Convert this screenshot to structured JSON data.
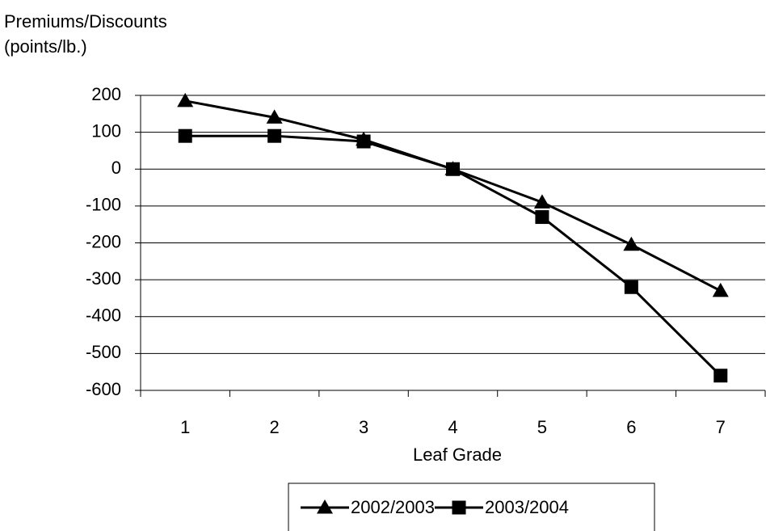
{
  "chart_data": {
    "type": "line",
    "ylabel": [
      "Premiums/Discounts",
      "(points/lb.)"
    ],
    "xlabel": "Leaf Grade",
    "categories": [
      "1",
      "2",
      "3",
      "4",
      "5",
      "6",
      "7"
    ],
    "series": [
      {
        "name": "2002/2003",
        "color": "#000000",
        "marker": "triangle",
        "values": [
          185,
          140,
          80,
          0,
          -90,
          -205,
          -330
        ]
      },
      {
        "name": "2003/2004",
        "color": "#000000",
        "marker": "square",
        "values": [
          90,
          90,
          75,
          0,
          -130,
          -320,
          -560
        ]
      }
    ],
    "ylim": [
      -600,
      200
    ],
    "yticks": [
      200,
      100,
      0,
      -100,
      -200,
      -300,
      -400,
      -500,
      -600
    ],
    "grid": true,
    "legend": "bottom"
  }
}
